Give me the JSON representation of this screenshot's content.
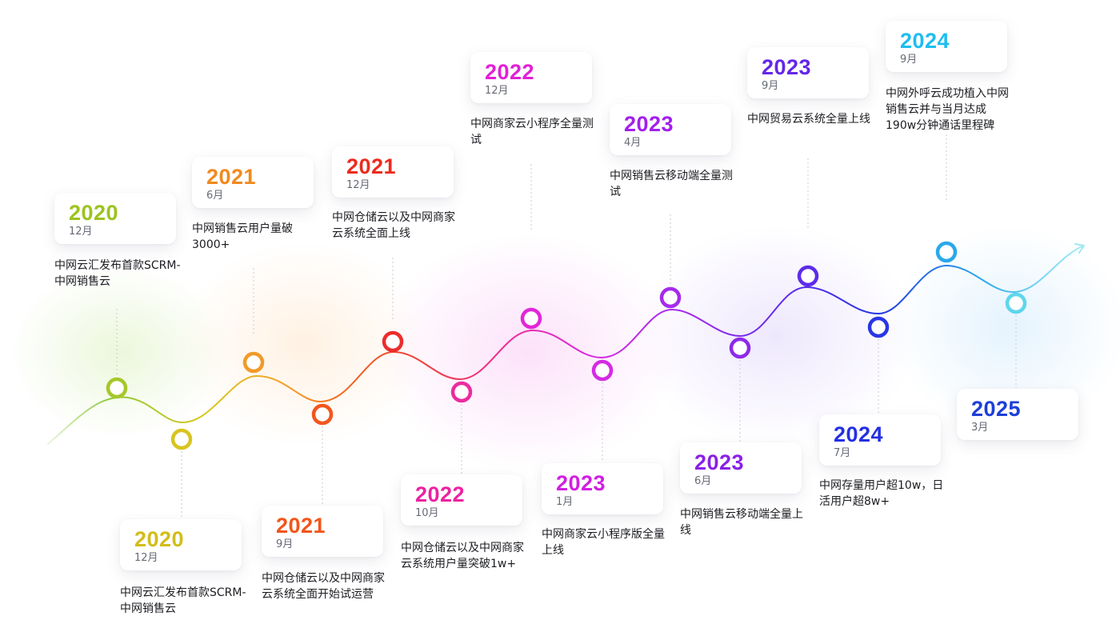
{
  "milestones": [
    {
      "year": "2020",
      "month": "12月",
      "desc": "中网云汇发布首款SCRM-中网销售云",
      "color": "#a6c72a",
      "yearColor": "#9cc31f",
      "side": "above"
    },
    {
      "year": "2020",
      "month": "12月",
      "desc": "中网云汇发布首款SCRM-中网销售云",
      "color": "#d9c41f",
      "yearColor": "#d2bd1a",
      "side": "below"
    },
    {
      "year": "2021",
      "month": "6月",
      "desc": "中网销售云用户量破3000+",
      "color": "#f19a28",
      "yearColor": "#f08a1f",
      "side": "above"
    },
    {
      "year": "2021",
      "month": "9月",
      "desc": "中网仓储云以及中网商家云系统全面开始试运营",
      "color": "#f2561c",
      "yearColor": "#f2551a",
      "side": "below"
    },
    {
      "year": "2021",
      "month": "12月",
      "desc": "中网仓储云以及中网商家云系统全面上线",
      "color": "#ec2c2c",
      "yearColor": "#ec2b1e",
      "side": "above"
    },
    {
      "year": "2022",
      "month": "10月",
      "desc": "中网仓储云以及中网商家云系统用户量突破1w+",
      "color": "#ec2ba1",
      "yearColor": "#ec22a0",
      "side": "below"
    },
    {
      "year": "2022",
      "month": "12月",
      "desc": "中网商家云小程序全量测试",
      "color": "#e227d8",
      "yearColor": "#e21fd7",
      "side": "above"
    },
    {
      "year": "2023",
      "month": "1月",
      "desc": "中网商家云小程序版全量上线",
      "color": "#d42be4",
      "yearColor": "#d21fe3",
      "side": "below"
    },
    {
      "year": "2023",
      "month": "4月",
      "desc": "中网销售云移动端全量测试",
      "color": "#a52bec",
      "yearColor": "#a11fec",
      "side": "above"
    },
    {
      "year": "2023",
      "month": "6月",
      "desc": "中网销售云移动端全量上线",
      "color": "#8e2ae8",
      "yearColor": "#8a20e8",
      "side": "below"
    },
    {
      "year": "2023",
      "month": "9月",
      "desc": "中网贸易云系统全量上线",
      "color": "#5d2cea",
      "yearColor": "#6426e8",
      "side": "above"
    },
    {
      "year": "2024",
      "month": "7月",
      "desc": "中网存量用户超10w，日活用户超8w+",
      "color": "#2936e6",
      "yearColor": "#2430e2",
      "side": "below"
    },
    {
      "year": "2024",
      "month": "9月",
      "desc": "中网外呼云成功植入中网销售云并与当月达成190w分钟通话里程碑",
      "color": "#2aa8ea",
      "yearColor": "#1fbdf0",
      "side": "above"
    },
    {
      "year": "2025",
      "month": "3月",
      "desc": "",
      "color": "#5fd6ec",
      "yearColor": "#1c3fd8",
      "side": "below"
    }
  ]
}
